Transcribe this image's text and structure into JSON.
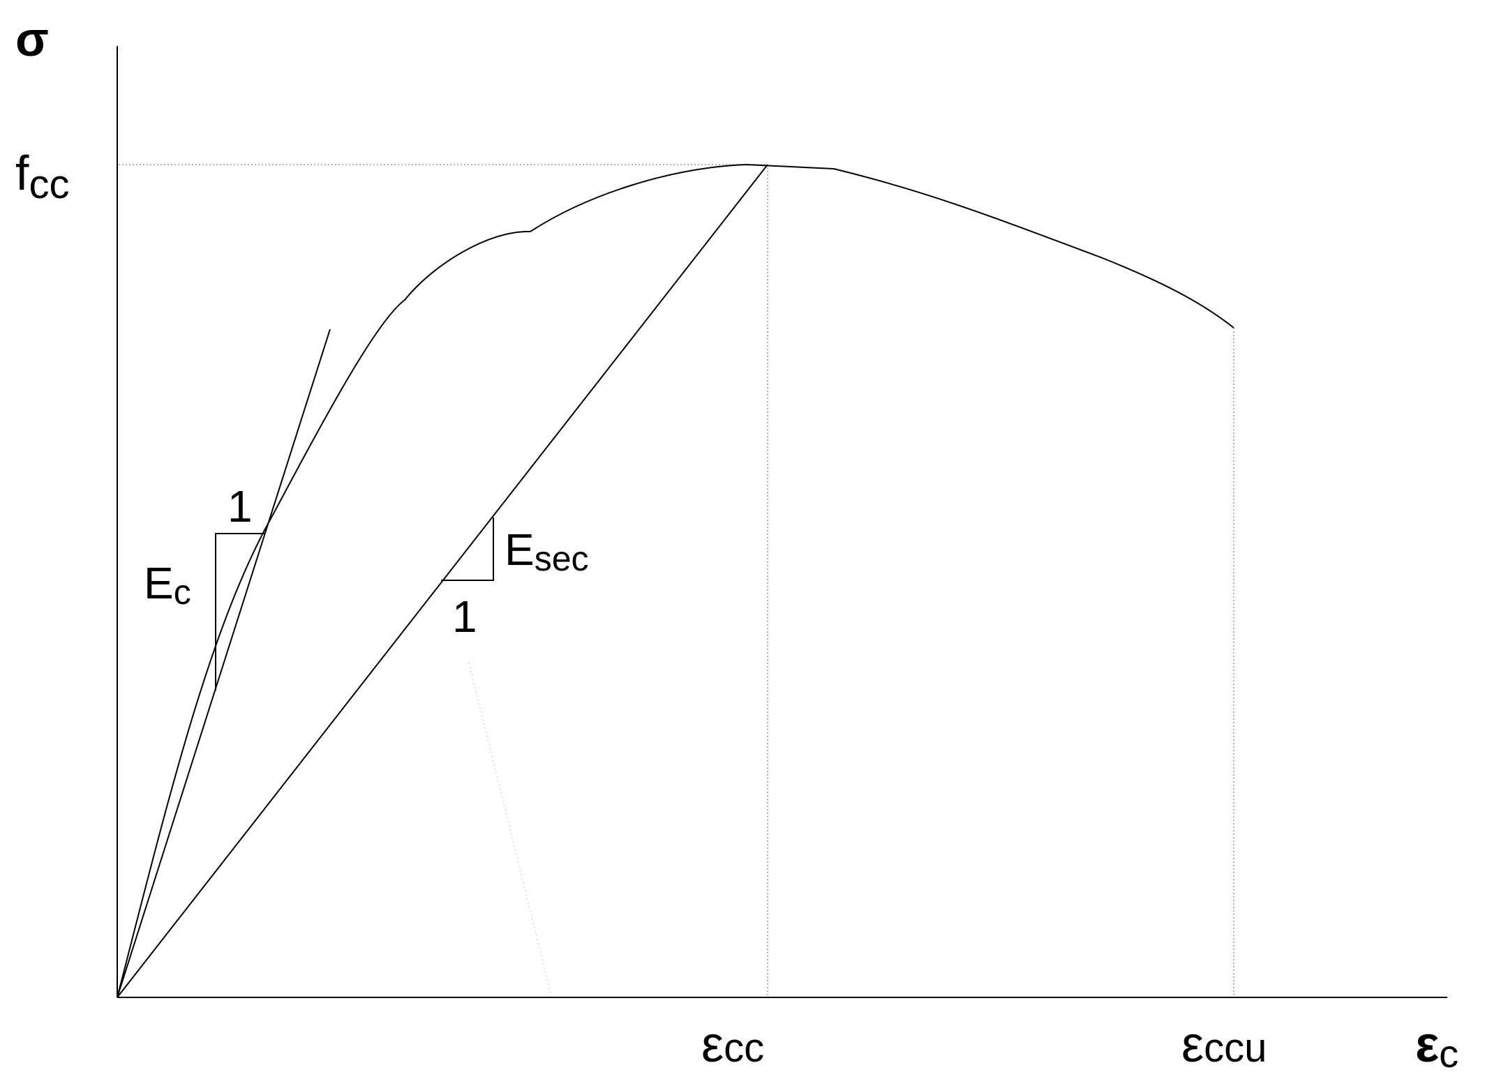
{
  "labels": {
    "y_axis": "σ",
    "fcc_main": "f",
    "fcc_sub": "cc",
    "ecc_main": "ε",
    "ecc_sub": "cc",
    "eccu_main": "ε",
    "eccu_sub": "ccu",
    "x_axis_main": "ε",
    "x_axis_sub": "c",
    "ec_main": "E",
    "ec_sub": "c",
    "esec_main": "E",
    "esec_sub": "sec",
    "slope_one_tangent": "1",
    "slope_one_secant": "1"
  },
  "colors": {
    "line": "#000000",
    "guide": "#9a9a9a",
    "background": "#ffffff"
  }
}
